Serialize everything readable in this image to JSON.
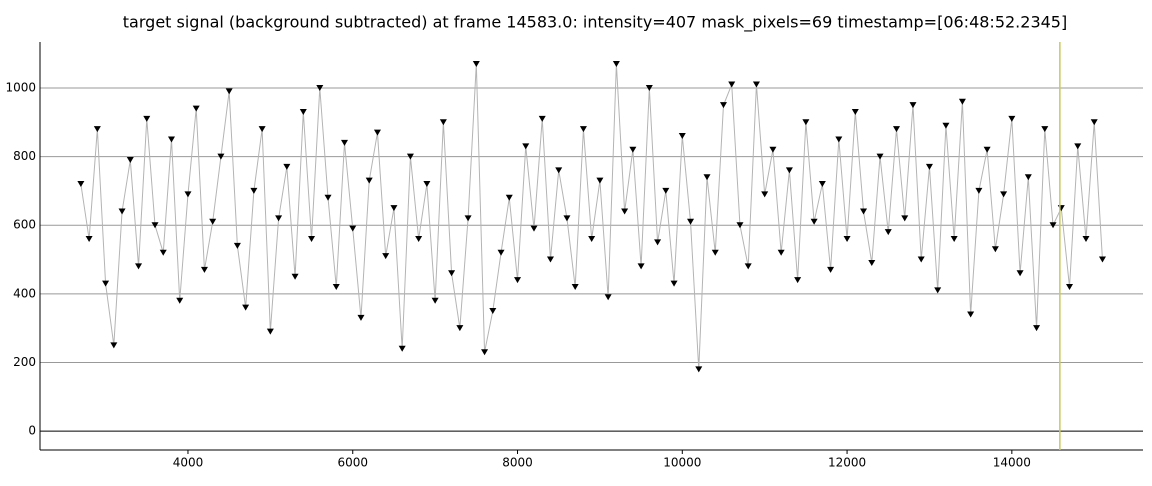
{
  "chart_data": {
    "type": "line",
    "title": "target signal (background subtracted) at frame 14583.0: intensity=407 mask_pixels=69 timestamp=[06:48:52.2345]",
    "x": [
      2700,
      2800,
      2900,
      3000,
      3100,
      3200,
      3300,
      3400,
      3500,
      3600,
      3700,
      3800,
      3900,
      4000,
      4100,
      4200,
      4300,
      4400,
      4500,
      4600,
      4700,
      4800,
      4900,
      5000,
      5100,
      5200,
      5300,
      5400,
      5500,
      5600,
      5700,
      5800,
      5900,
      6000,
      6100,
      6200,
      6300,
      6400,
      6500,
      6600,
      6700,
      6800,
      6900,
      7000,
      7100,
      7200,
      7300,
      7400,
      7500,
      7600,
      7700,
      7800,
      7900,
      8000,
      8100,
      8200,
      8300,
      8400,
      8500,
      8600,
      8700,
      8800,
      8900,
      9000,
      9100,
      9200,
      9300,
      9400,
      9500,
      9600,
      9700,
      9800,
      9900,
      10000,
      10100,
      10200,
      10300,
      10400,
      10500,
      10600,
      10700,
      10800,
      10900,
      11000,
      11100,
      11200,
      11300,
      11400,
      11500,
      11600,
      11700,
      11800,
      11900,
      12000,
      12100,
      12200,
      12300,
      12400,
      12500,
      12600,
      12700,
      12800,
      12900,
      13000,
      13100,
      13200,
      13300,
      13400,
      13500,
      13600,
      13700,
      13800,
      13900,
      14000,
      14100,
      14200,
      14300,
      14400,
      14500,
      14600,
      14700,
      14800,
      14900,
      15000,
      15100
    ],
    "series": [
      {
        "color": "#000000",
        "line_color": "#b4b4b4",
        "values": [
          720,
          560,
          880,
          430,
          250,
          640,
          790,
          480,
          910,
          600,
          520,
          850,
          380,
          690,
          940,
          470,
          610,
          800,
          990,
          540,
          360,
          700,
          880,
          290,
          620,
          770,
          450,
          930,
          560,
          1000,
          680,
          420,
          840,
          590,
          330,
          730,
          870,
          510,
          650,
          240,
          800,
          560,
          720,
          380,
          900,
          460,
          300,
          620,
          1070,
          230,
          350,
          520,
          680,
          440,
          830,
          590,
          910,
          500,
          760,
          620,
          420,
          880,
          560,
          730,
          390,
          1070,
          640,
          820,
          480,
          1000,
          550,
          700,
          430,
          860,
          610,
          180,
          740,
          520,
          950,
          1010,
          600,
          480,
          1010,
          690,
          820,
          520,
          760,
          440,
          900,
          610,
          720,
          470,
          850,
          560,
          930,
          640,
          490,
          800,
          580,
          880,
          620,
          950,
          500,
          770,
          410,
          890,
          560,
          960,
          340,
          700,
          820,
          530,
          690,
          910,
          460,
          740,
          300,
          880,
          600,
          650,
          420,
          830,
          560,
          900,
          500
        ]
      }
    ],
    "cursor_x": 14583,
    "cursor_color": "#c8c864",
    "xlim": [
      2204,
      15592
    ],
    "ylim": [
      -55,
      1134
    ],
    "xticks": [
      4000,
      6000,
      8000,
      10000,
      12000,
      14000
    ],
    "yticks": [
      0,
      200,
      400,
      600,
      800,
      1000
    ],
    "grid": true
  }
}
